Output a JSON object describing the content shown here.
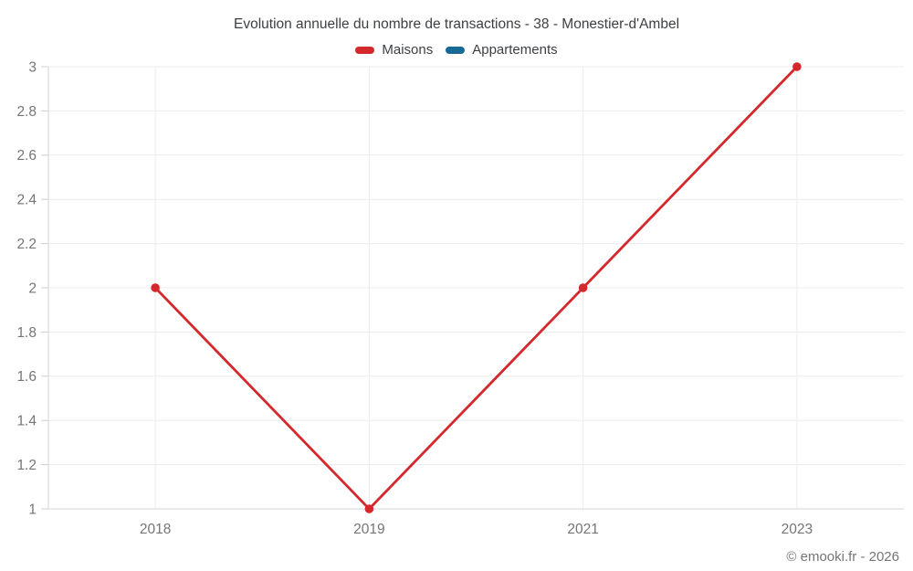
{
  "footer": {
    "copyright": "© emooki.fr - 2026"
  },
  "colors": {
    "background": "#ffffff",
    "title_text": "#3d4043",
    "axis_label_text": "#757575",
    "gridline": "#ececec",
    "axis_line": "#d6d6d6",
    "tick": "#cfcfcf",
    "maisons": "#d4282c",
    "appartements": "#176a94"
  },
  "chart_data": {
    "type": "line",
    "title": "Evolution annuelle du nombre de transactions - 38 - Monestier-d'Ambel",
    "categories": [
      "2018",
      "2019",
      "2021",
      "2023"
    ],
    "series": [
      {
        "name": "Maisons",
        "color": "#d4282c",
        "values": [
          2,
          1,
          2,
          3
        ]
      },
      {
        "name": "Appartements",
        "color": "#176a94",
        "values": null
      }
    ],
    "xlabel": "",
    "ylabel": "",
    "ylim": [
      1,
      3
    ],
    "ytick_step": 0.2,
    "ytick_labels": [
      "1",
      "1.2",
      "1.4",
      "1.6",
      "1.8",
      "2",
      "2.2",
      "2.4",
      "2.6",
      "2.8",
      "3"
    ],
    "grid": true,
    "legend_position": "top",
    "marker": "circle",
    "marker_radius": 4.8,
    "line_width": 2.8
  }
}
